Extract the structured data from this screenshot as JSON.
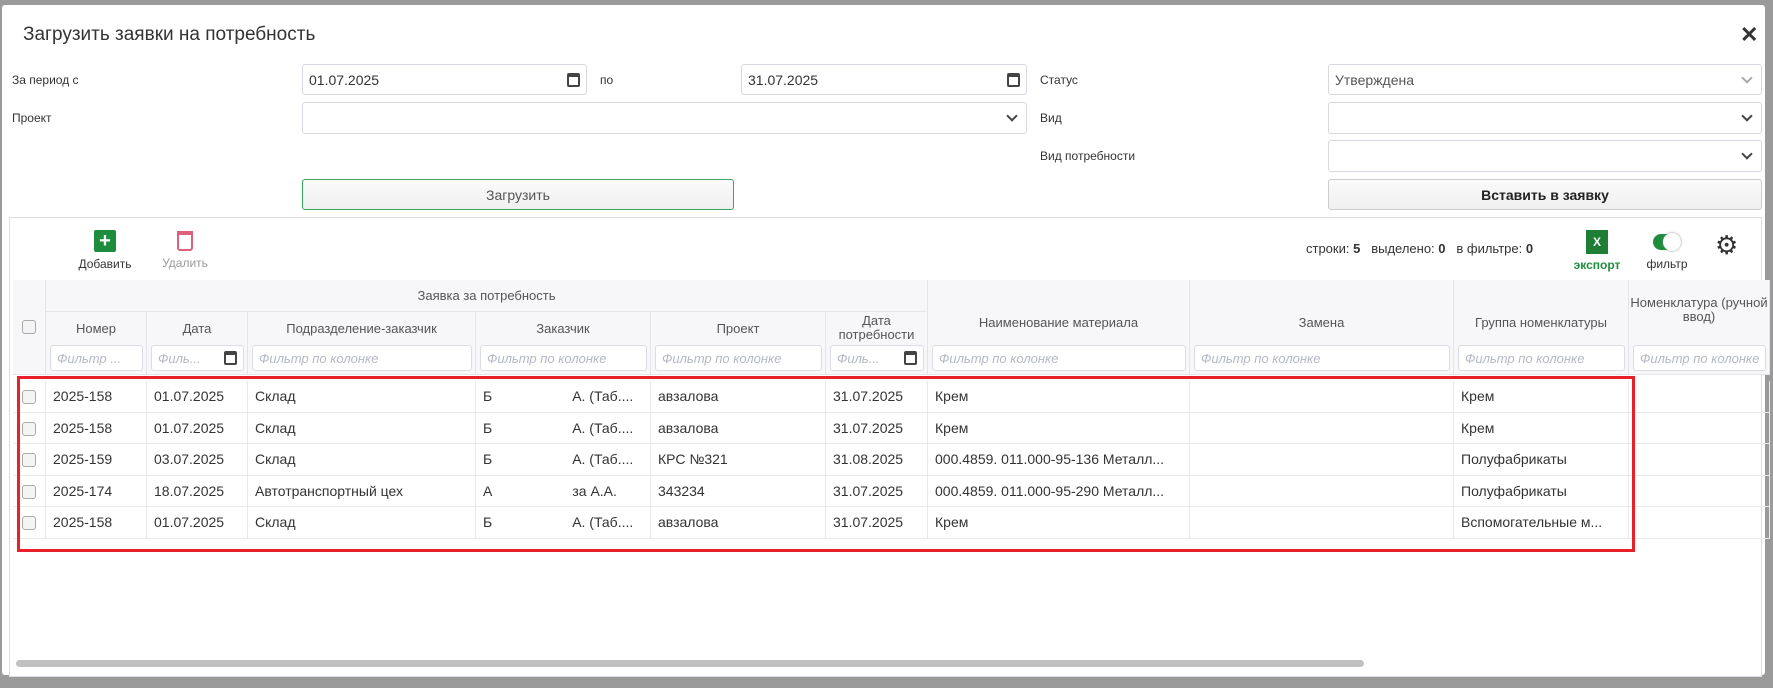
{
  "dialog": {
    "title": "Загрузить заявки на потребность",
    "close_icon": "close-icon"
  },
  "form": {
    "period_from_label": "За период с",
    "period_from": "01.07.2025",
    "period_to_label": "по",
    "period_to": "31.07.2025",
    "status_label": "Статус",
    "status_value": "Утверждена",
    "project_label": "Проект",
    "project_value": "",
    "kind_label": "Вид",
    "kind_value": "",
    "need_kind_label": "Вид потребности",
    "need_kind_value": "",
    "load_button": "Загрузить",
    "insert_button": "Вставить в заявку"
  },
  "toolbar": {
    "add": "Добавить",
    "delete": "Удалить",
    "rows_label": "строки:",
    "rows": "5",
    "selected_label": "выделено:",
    "selected": "0",
    "in_filter_label": "в фильтре:",
    "in_filter": "0",
    "export": "экспорт",
    "filter": "фильтр",
    "export_icon_letter": "X",
    "filter_toggle_on": true
  },
  "colors": {
    "accent_green": "#1e8e3e",
    "delete_red": "#e0607a",
    "highlight_red": "#e8202a"
  },
  "table": {
    "group_header": "Заявка за потребность",
    "filter_placeholder": "Фильтр по колонке",
    "filter_short": "Фильтр ...",
    "filter_date_short": "Филь...",
    "columns": [
      "Номер",
      "Дата",
      "Подразделение-заказчик",
      "Заказчик",
      "Проект",
      "Дата потребности",
      "Наименование материала",
      "Замена",
      "Группа номенклатуры",
      "Номенклатура (ручной ввод)"
    ],
    "rows": [
      {
        "number": "2025-158",
        "date": "01.07.2025",
        "dept": "Склад",
        "customer_a": "Б",
        "customer_b": "А. (Таб....",
        "project": "авзалова",
        "need_date": "31.07.2025",
        "material": "Крем",
        "replacement": "",
        "group": "Крем",
        "nomenclature": ""
      },
      {
        "number": "2025-158",
        "date": "01.07.2025",
        "dept": "Склад",
        "customer_a": "Б",
        "customer_b": "А. (Таб....",
        "project": "авзалова",
        "need_date": "31.07.2025",
        "material": "Крем",
        "replacement": "",
        "group": "Крем",
        "nomenclature": ""
      },
      {
        "number": "2025-159",
        "date": "03.07.2025",
        "dept": "Склад",
        "customer_a": "Б",
        "customer_b": "А. (Таб....",
        "project": "КРС №321",
        "need_date": "31.08.2025",
        "material": "000.4859. 011.000-95-136 Металл...",
        "replacement": "",
        "group": "Полуфабрикаты",
        "nomenclature": ""
      },
      {
        "number": "2025-174",
        "date": "18.07.2025",
        "dept": "Автотранспортный цех",
        "customer_a": "А",
        "customer_b": "за А.А.",
        "project": "343234",
        "need_date": "31.07.2025",
        "material": "000.4859. 011.000-95-290 Металл...",
        "replacement": "",
        "group": "Полуфабрикаты",
        "nomenclature": ""
      },
      {
        "number": "2025-158",
        "date": "01.07.2025",
        "dept": "Склад",
        "customer_a": "Б",
        "customer_b": "А. (Таб....",
        "project": "авзалова",
        "need_date": "31.07.2025",
        "material": "Крем",
        "replacement": "",
        "group": "Вспомогательные м...",
        "nomenclature": ""
      }
    ]
  }
}
